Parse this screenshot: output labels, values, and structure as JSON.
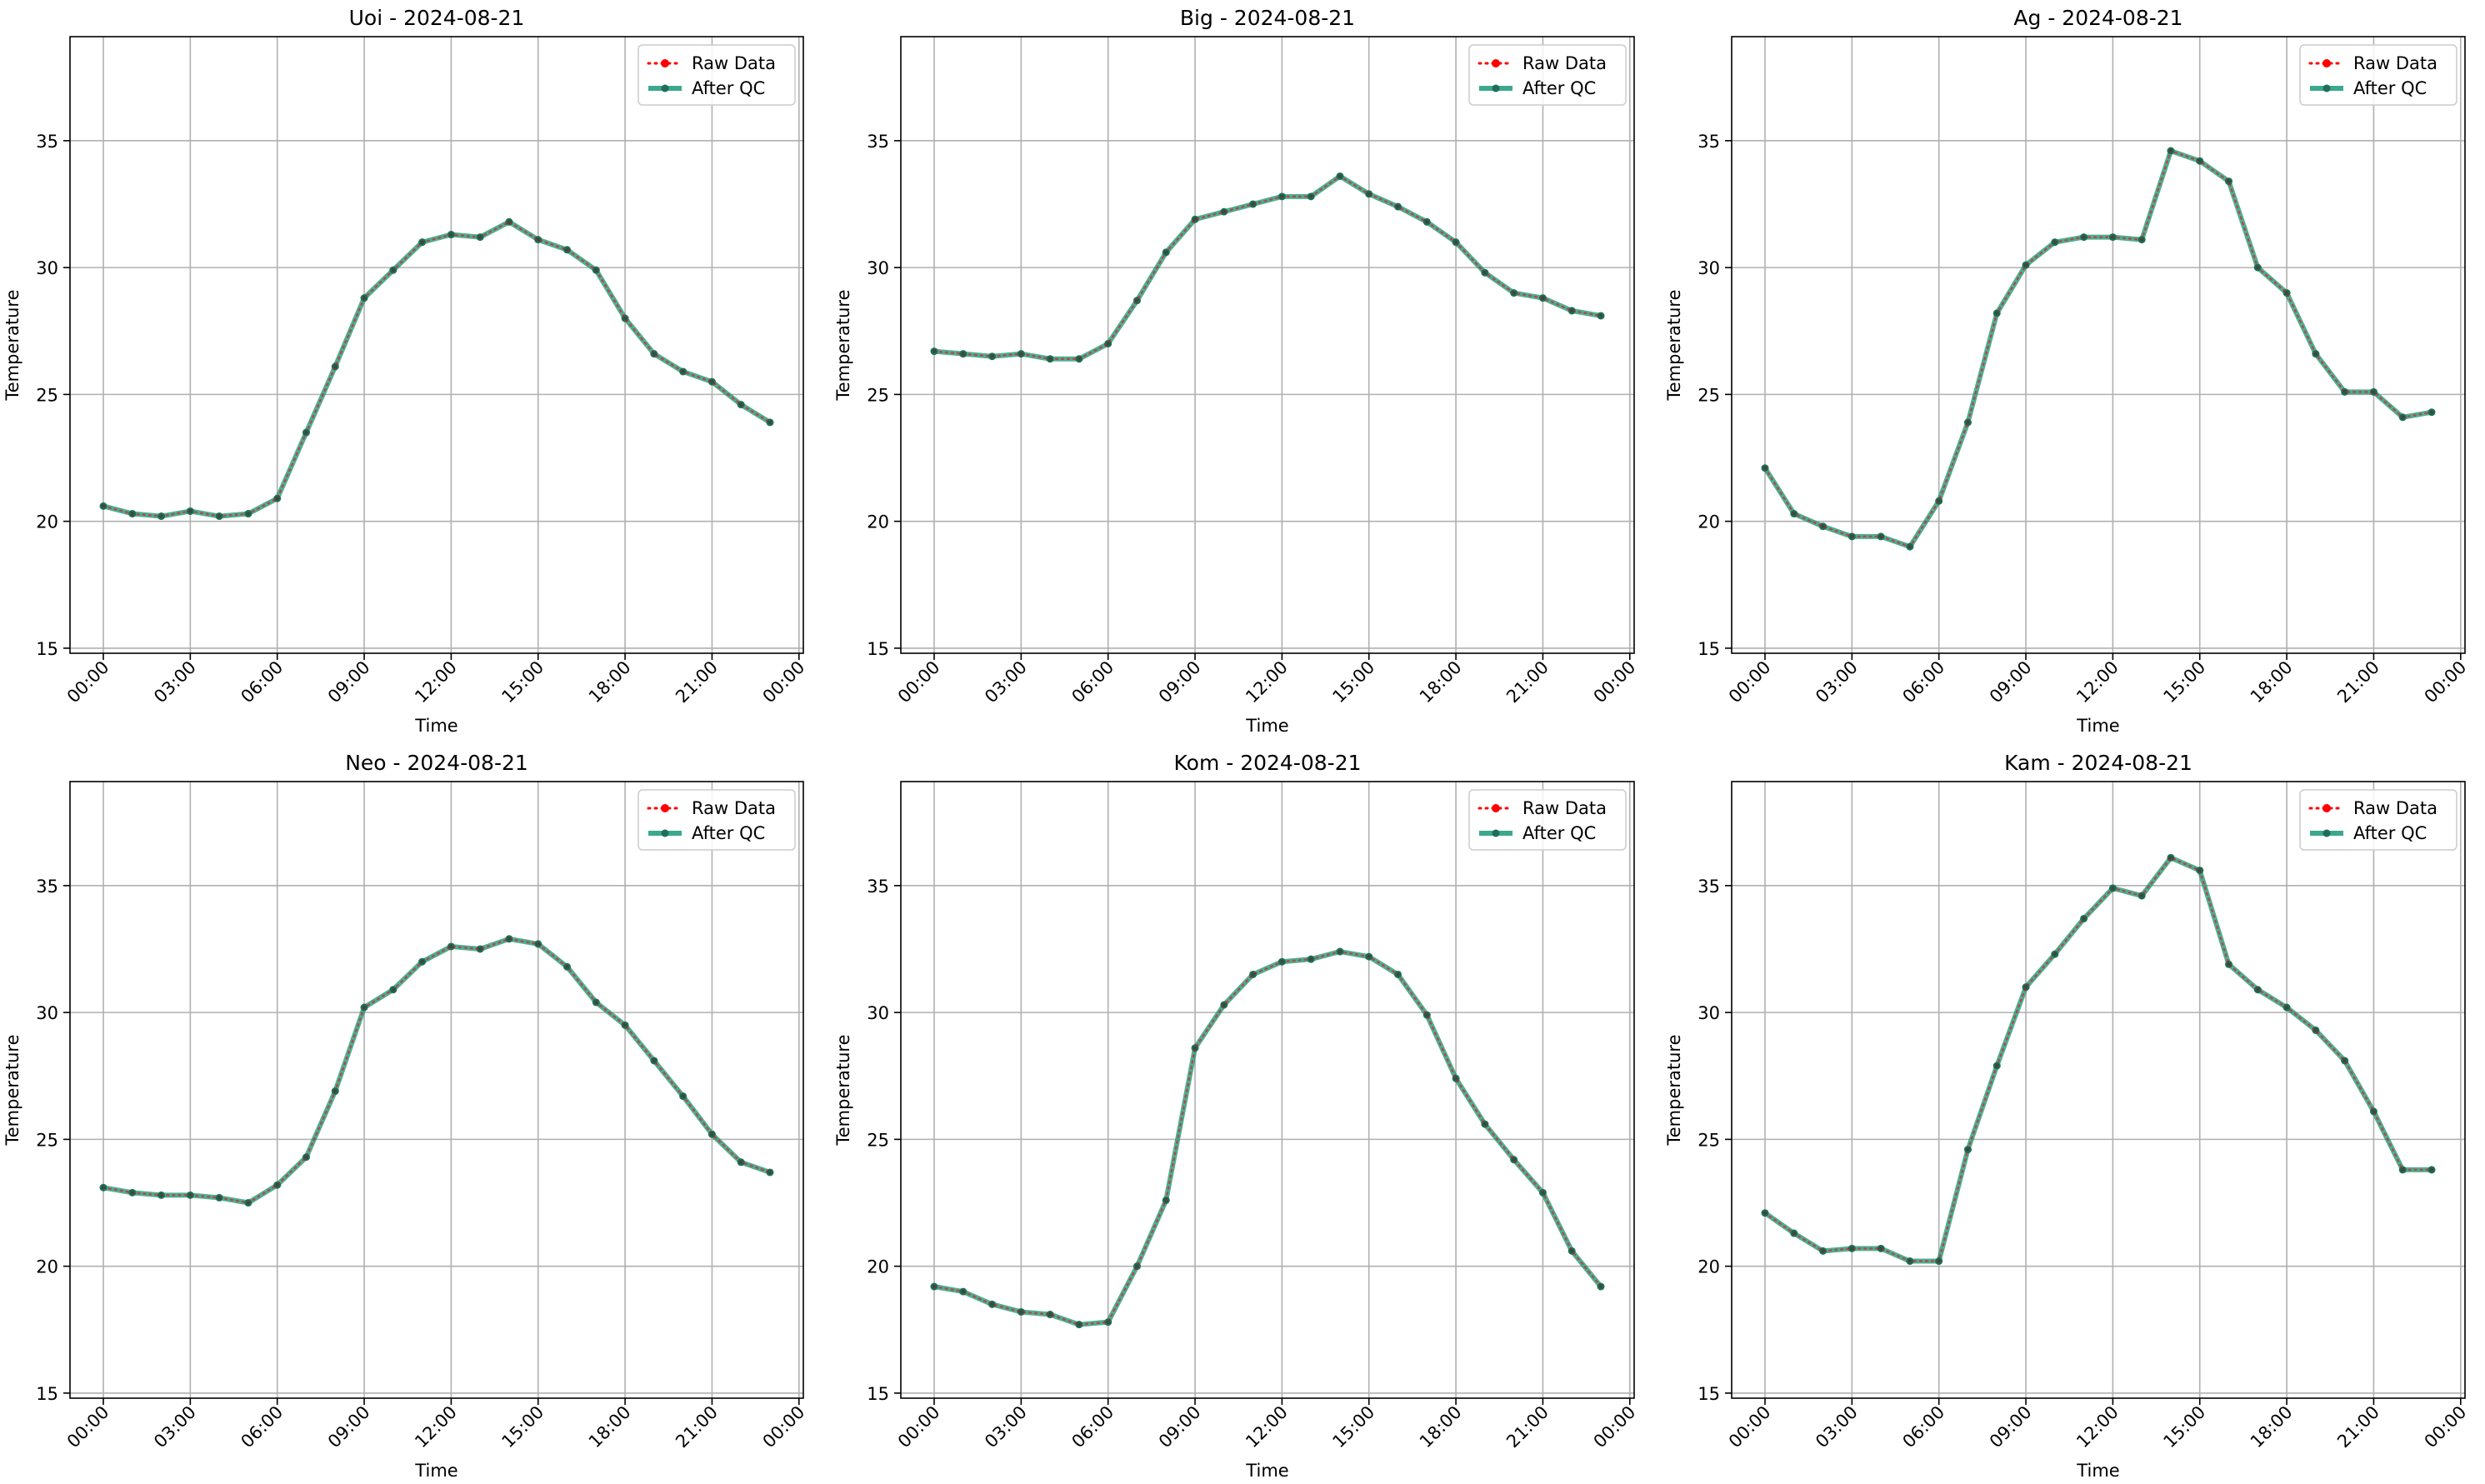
{
  "colors": {
    "raw": "#ff0000",
    "after_qc": "#1a9a78",
    "after_qc_marker": "#1f6f58",
    "grid": "#b0b0b0",
    "axes": "#000000"
  },
  "legend": {
    "placement": "top-right",
    "entries": [
      "Raw Data",
      "After QC"
    ]
  },
  "chart_data": [
    {
      "type": "line",
      "title": "Uoi - 2024-08-21",
      "xlabel": "Time",
      "ylabel": "Temperature",
      "ylim": [
        14.8,
        39.1
      ],
      "yticks": [
        15,
        20,
        25,
        30,
        35
      ],
      "xlim_hours": [
        -1.15,
        24.15
      ],
      "xticks": [
        "00:00",
        "03:00",
        "06:00",
        "09:00",
        "12:00",
        "15:00",
        "18:00",
        "21:00",
        "00:00"
      ],
      "grid": true,
      "x": [
        "00:00",
        "01:00",
        "02:00",
        "03:00",
        "04:00",
        "05:00",
        "06:00",
        "07:00",
        "08:00",
        "09:00",
        "10:00",
        "11:00",
        "12:00",
        "13:00",
        "14:00",
        "15:00",
        "16:00",
        "17:00",
        "18:00",
        "19:00",
        "20:00",
        "21:00",
        "22:00",
        "23:00"
      ],
      "series": [
        {
          "name": "Raw Data",
          "values": [
            20.6,
            20.3,
            20.2,
            20.4,
            20.2,
            20.3,
            20.9,
            23.5,
            26.1,
            28.8,
            29.9,
            31.0,
            31.3,
            31.2,
            31.8,
            31.1,
            30.7,
            29.9,
            28.0,
            26.6,
            25.9,
            25.5,
            24.6,
            23.9
          ]
        },
        {
          "name": "After QC",
          "values": [
            20.6,
            20.3,
            20.2,
            20.4,
            20.2,
            20.3,
            20.9,
            23.5,
            26.1,
            28.8,
            29.9,
            31.0,
            31.3,
            31.2,
            31.8,
            31.1,
            30.7,
            29.9,
            28.0,
            26.6,
            25.9,
            25.5,
            24.6,
            23.9
          ]
        }
      ]
    },
    {
      "type": "line",
      "title": "Big - 2024-08-21",
      "xlabel": "Time",
      "ylabel": "Temperature",
      "ylim": [
        14.8,
        39.1
      ],
      "yticks": [
        15,
        20,
        25,
        30,
        35
      ],
      "xlim_hours": [
        -1.15,
        24.15
      ],
      "xticks": [
        "00:00",
        "03:00",
        "06:00",
        "09:00",
        "12:00",
        "15:00",
        "18:00",
        "21:00",
        "00:00"
      ],
      "grid": true,
      "x": [
        "00:00",
        "01:00",
        "02:00",
        "03:00",
        "04:00",
        "05:00",
        "06:00",
        "07:00",
        "08:00",
        "09:00",
        "10:00",
        "11:00",
        "12:00",
        "13:00",
        "14:00",
        "15:00",
        "16:00",
        "17:00",
        "18:00",
        "19:00",
        "20:00",
        "21:00",
        "22:00",
        "23:00"
      ],
      "series": [
        {
          "name": "Raw Data",
          "values": [
            26.7,
            26.6,
            26.5,
            26.6,
            26.4,
            26.4,
            27.0,
            28.7,
            30.6,
            31.9,
            32.2,
            32.5,
            32.8,
            32.8,
            33.6,
            32.9,
            32.4,
            31.8,
            31.0,
            29.8,
            29.0,
            28.8,
            28.3,
            28.1
          ]
        },
        {
          "name": "After QC",
          "values": [
            26.7,
            26.6,
            26.5,
            26.6,
            26.4,
            26.4,
            27.0,
            28.7,
            30.6,
            31.9,
            32.2,
            32.5,
            32.8,
            32.8,
            33.6,
            32.9,
            32.4,
            31.8,
            31.0,
            29.8,
            29.0,
            28.8,
            28.3,
            28.1
          ]
        }
      ]
    },
    {
      "type": "line",
      "title": "Ag - 2024-08-21",
      "xlabel": "Time",
      "ylabel": "Temperature",
      "ylim": [
        14.8,
        39.1
      ],
      "yticks": [
        15,
        20,
        25,
        30,
        35
      ],
      "xlim_hours": [
        -1.15,
        24.15
      ],
      "xticks": [
        "00:00",
        "03:00",
        "06:00",
        "09:00",
        "12:00",
        "15:00",
        "18:00",
        "21:00",
        "00:00"
      ],
      "grid": true,
      "x": [
        "00:00",
        "01:00",
        "02:00",
        "03:00",
        "04:00",
        "05:00",
        "06:00",
        "07:00",
        "08:00",
        "09:00",
        "10:00",
        "11:00",
        "12:00",
        "13:00",
        "14:00",
        "15:00",
        "16:00",
        "17:00",
        "18:00",
        "19:00",
        "20:00",
        "21:00",
        "22:00",
        "23:00"
      ],
      "series": [
        {
          "name": "Raw Data",
          "values": [
            22.1,
            20.3,
            19.8,
            19.4,
            19.4,
            19.0,
            20.8,
            23.9,
            28.2,
            30.1,
            31.0,
            31.2,
            31.2,
            31.1,
            34.6,
            34.2,
            33.4,
            30.0,
            29.0,
            26.6,
            25.1,
            25.1,
            24.1,
            24.3
          ]
        },
        {
          "name": "After QC",
          "values": [
            22.1,
            20.3,
            19.8,
            19.4,
            19.4,
            19.0,
            20.8,
            23.9,
            28.2,
            30.1,
            31.0,
            31.2,
            31.2,
            31.1,
            34.6,
            34.2,
            33.4,
            30.0,
            29.0,
            26.6,
            25.1,
            25.1,
            24.1,
            24.3
          ]
        }
      ]
    },
    {
      "type": "line",
      "title": "Neo - 2024-08-21",
      "xlabel": "Time",
      "ylabel": "Temperature",
      "ylim": [
        14.8,
        39.1
      ],
      "yticks": [
        15,
        20,
        25,
        30,
        35
      ],
      "xlim_hours": [
        -1.15,
        24.15
      ],
      "xticks": [
        "00:00",
        "03:00",
        "06:00",
        "09:00",
        "12:00",
        "15:00",
        "18:00",
        "21:00",
        "00:00"
      ],
      "grid": true,
      "x": [
        "00:00",
        "01:00",
        "02:00",
        "03:00",
        "04:00",
        "05:00",
        "06:00",
        "07:00",
        "08:00",
        "09:00",
        "10:00",
        "11:00",
        "12:00",
        "13:00",
        "14:00",
        "15:00",
        "16:00",
        "17:00",
        "18:00",
        "19:00",
        "20:00",
        "21:00",
        "22:00",
        "23:00"
      ],
      "series": [
        {
          "name": "Raw Data",
          "values": [
            23.1,
            22.9,
            22.8,
            22.8,
            22.7,
            22.5,
            23.2,
            24.3,
            26.9,
            30.2,
            30.9,
            32.0,
            32.6,
            32.5,
            32.9,
            32.7,
            31.8,
            30.4,
            29.5,
            28.1,
            26.7,
            25.2,
            24.1,
            23.7
          ]
        },
        {
          "name": "After QC",
          "values": [
            23.1,
            22.9,
            22.8,
            22.8,
            22.7,
            22.5,
            23.2,
            24.3,
            26.9,
            30.2,
            30.9,
            32.0,
            32.6,
            32.5,
            32.9,
            32.7,
            31.8,
            30.4,
            29.5,
            28.1,
            26.7,
            25.2,
            24.1,
            23.7
          ]
        }
      ]
    },
    {
      "type": "line",
      "title": "Kom - 2024-08-21",
      "xlabel": "Time",
      "ylabel": "Temperature",
      "ylim": [
        14.8,
        39.1
      ],
      "yticks": [
        15,
        20,
        25,
        30,
        35
      ],
      "xlim_hours": [
        -1.15,
        24.15
      ],
      "xticks": [
        "00:00",
        "03:00",
        "06:00",
        "09:00",
        "12:00",
        "15:00",
        "18:00",
        "21:00",
        "00:00"
      ],
      "grid": true,
      "x": [
        "00:00",
        "01:00",
        "02:00",
        "03:00",
        "04:00",
        "05:00",
        "06:00",
        "07:00",
        "08:00",
        "09:00",
        "10:00",
        "11:00",
        "12:00",
        "13:00",
        "14:00",
        "15:00",
        "16:00",
        "17:00",
        "18:00",
        "19:00",
        "20:00",
        "21:00",
        "22:00",
        "23:00"
      ],
      "series": [
        {
          "name": "Raw Data",
          "values": [
            19.2,
            19.0,
            18.5,
            18.2,
            18.1,
            17.7,
            17.8,
            20.0,
            22.6,
            28.6,
            30.3,
            31.5,
            32.0,
            32.1,
            32.4,
            32.2,
            31.5,
            29.9,
            27.4,
            25.6,
            24.2,
            22.9,
            20.6,
            19.2
          ]
        },
        {
          "name": "After QC",
          "values": [
            19.2,
            19.0,
            18.5,
            18.2,
            18.1,
            17.7,
            17.8,
            20.0,
            22.6,
            28.6,
            30.3,
            31.5,
            32.0,
            32.1,
            32.4,
            32.2,
            31.5,
            29.9,
            27.4,
            25.6,
            24.2,
            22.9,
            20.6,
            19.2
          ]
        }
      ]
    },
    {
      "type": "line",
      "title": "Kam - 2024-08-21",
      "xlabel": "Time",
      "ylabel": "Temperature",
      "ylim": [
        14.8,
        39.1
      ],
      "yticks": [
        15,
        20,
        25,
        30,
        35
      ],
      "xlim_hours": [
        -1.15,
        24.15
      ],
      "xticks": [
        "00:00",
        "03:00",
        "06:00",
        "09:00",
        "12:00",
        "15:00",
        "18:00",
        "21:00",
        "00:00"
      ],
      "grid": true,
      "x": [
        "00:00",
        "01:00",
        "02:00",
        "03:00",
        "04:00",
        "05:00",
        "06:00",
        "07:00",
        "08:00",
        "09:00",
        "10:00",
        "11:00",
        "12:00",
        "13:00",
        "14:00",
        "15:00",
        "16:00",
        "17:00",
        "18:00",
        "19:00",
        "20:00",
        "21:00",
        "22:00",
        "23:00"
      ],
      "series": [
        {
          "name": "Raw Data",
          "values": [
            22.1,
            21.3,
            20.6,
            20.7,
            20.7,
            20.2,
            20.2,
            24.6,
            27.9,
            31.0,
            32.3,
            33.7,
            34.9,
            34.6,
            36.1,
            35.6,
            31.9,
            30.9,
            30.2,
            29.3,
            28.1,
            26.1,
            23.8,
            23.8
          ]
        },
        {
          "name": "After QC",
          "values": [
            22.1,
            21.3,
            20.6,
            20.7,
            20.7,
            20.2,
            20.2,
            24.6,
            27.9,
            31.0,
            32.3,
            33.7,
            34.9,
            34.6,
            36.1,
            35.6,
            31.9,
            30.9,
            30.2,
            29.3,
            28.1,
            26.1,
            23.8,
            23.8
          ]
        }
      ]
    }
  ]
}
